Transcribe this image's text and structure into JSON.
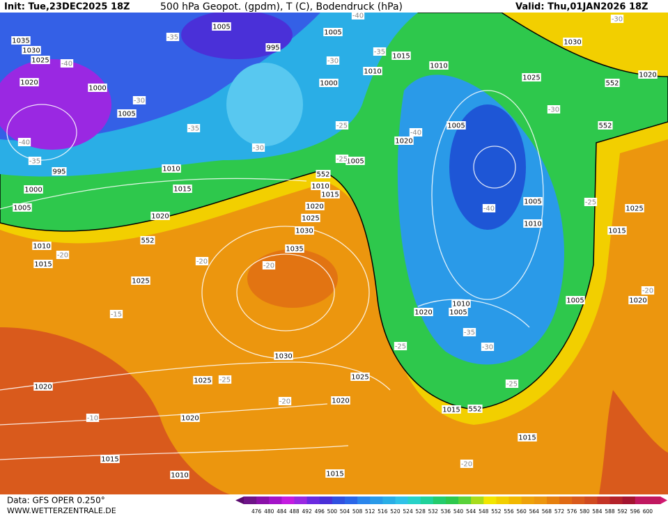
{
  "header": {
    "init": "Init: Tue,23DEC2025 18Z",
    "title": "500 hPa Geopot. (gpdm), T (C), Bodendruck (hPa)",
    "valid": "Valid: Thu,01JAN2026 18Z"
  },
  "footer": {
    "source": "Data: GFS OPER 0.250°",
    "site": "WWW.WETTERZENTRALE.DE"
  },
  "colorbar": {
    "labels": [
      476,
      480,
      484,
      488,
      492,
      496,
      500,
      504,
      508,
      512,
      516,
      520,
      524,
      528,
      532,
      536,
      540,
      544,
      548,
      552,
      556,
      560,
      564,
      568,
      572,
      576,
      580,
      584,
      588,
      592,
      596,
      600
    ]
  },
  "map": {
    "isobar_labels": [
      "1035",
      "1030",
      "1025",
      "1020",
      "1000",
      "1005",
      "995",
      "1000",
      "1005",
      "1010",
      "1015",
      "1020",
      "1010",
      "1015",
      "1025",
      "1035",
      "1030",
      "1025",
      "1020",
      "1015",
      "1010",
      "1005",
      "1000",
      "1010",
      "1015",
      "1005",
      "1005",
      "995",
      "1030",
      "1025",
      "1025",
      "1020",
      "1020",
      "1020",
      "1015",
      "1010",
      "1015",
      "1015",
      "1015",
      "1020",
      "1005",
      "1010",
      "1005",
      "1005",
      "1010",
      "1005",
      "1020",
      "1025",
      "1030",
      "1020",
      "1015",
      "1025",
      "1010",
      "1020"
    ],
    "contour_labels": [
      "552",
      "552",
      "552",
      "552",
      "552"
    ],
    "isotherm_labels": [
      "-40",
      "-35",
      "-30",
      "-35",
      "-40",
      "-35",
      "-30",
      "-25",
      "-25",
      "-20",
      "-20",
      "-20",
      "-15",
      "-25",
      "-20",
      "-10",
      "-25",
      "-35",
      "-30",
      "-25",
      "-20",
      "-40",
      "-40",
      "-30",
      "-25",
      "-20",
      "-35",
      "-30",
      "-40",
      "-30"
    ]
  }
}
